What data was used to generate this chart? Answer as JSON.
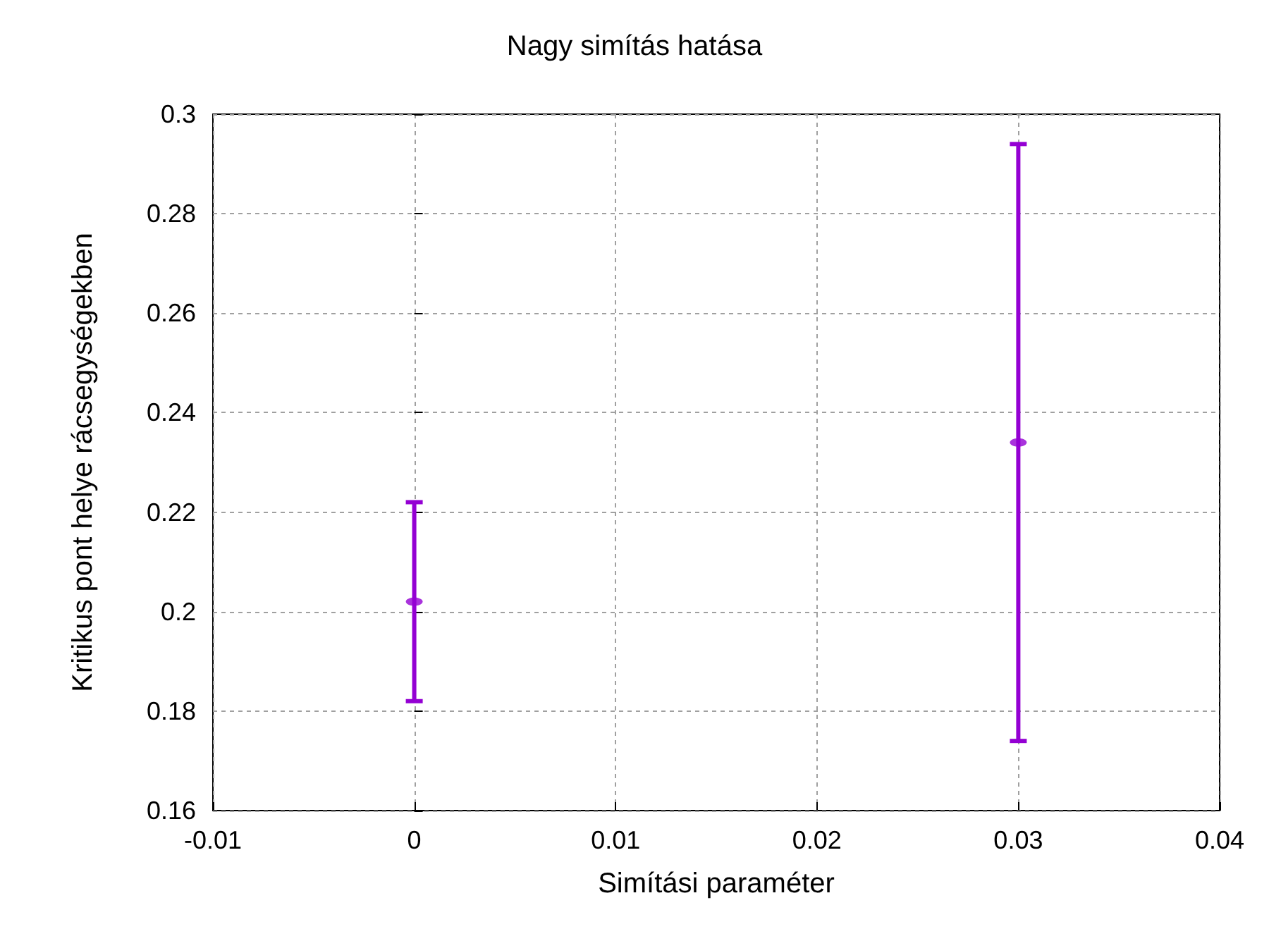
{
  "chart_data": {
    "type": "scatter",
    "title": "Nagy simítás hatása",
    "xlabel": "Simítási paraméter",
    "ylabel": "Kritikus pont helye rácsegységekben",
    "x": [
      0,
      0.03
    ],
    "series": [
      {
        "color": "#9400d3",
        "values": [
          0.202,
          0.234
        ],
        "errors": [
          0.02,
          0.06
        ]
      }
    ],
    "xlim": [
      -0.01,
      0.04
    ],
    "xticks": [
      -0.01,
      0,
      0.01,
      0.02,
      0.03,
      0.04
    ],
    "ylim": [
      0.16,
      0.3
    ],
    "yticks": [
      0.16,
      0.18,
      0.2,
      0.22,
      0.24,
      0.26,
      0.28,
      0.3
    ],
    "grid": true
  }
}
